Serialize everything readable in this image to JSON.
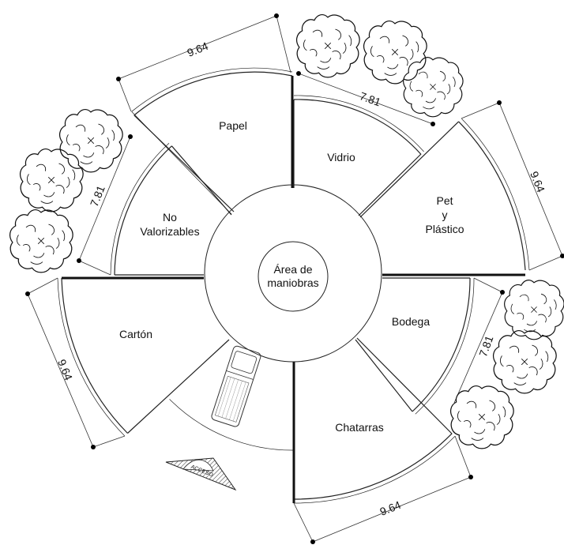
{
  "center_label": {
    "line1": "Área de",
    "line2": "maniobras"
  },
  "sectors": {
    "papel": "Papel",
    "vidrio": "Vidrio",
    "pet": {
      "line1": "Pet",
      "line2": "y",
      "line3": "Plástico"
    },
    "bodega": "Bodega",
    "chatarras": "Chatarras",
    "carton": "Cartón",
    "no_valorizables": {
      "line1": "No",
      "line2": "Valorizables"
    }
  },
  "dimensions": {
    "top": "9.64",
    "top_right_inner": "7.81",
    "right": "9.64",
    "right_inner": "7.81",
    "bottom": "9.64",
    "left": "9.64",
    "left_inner": "7.81"
  },
  "access_label": "ACCESO"
}
